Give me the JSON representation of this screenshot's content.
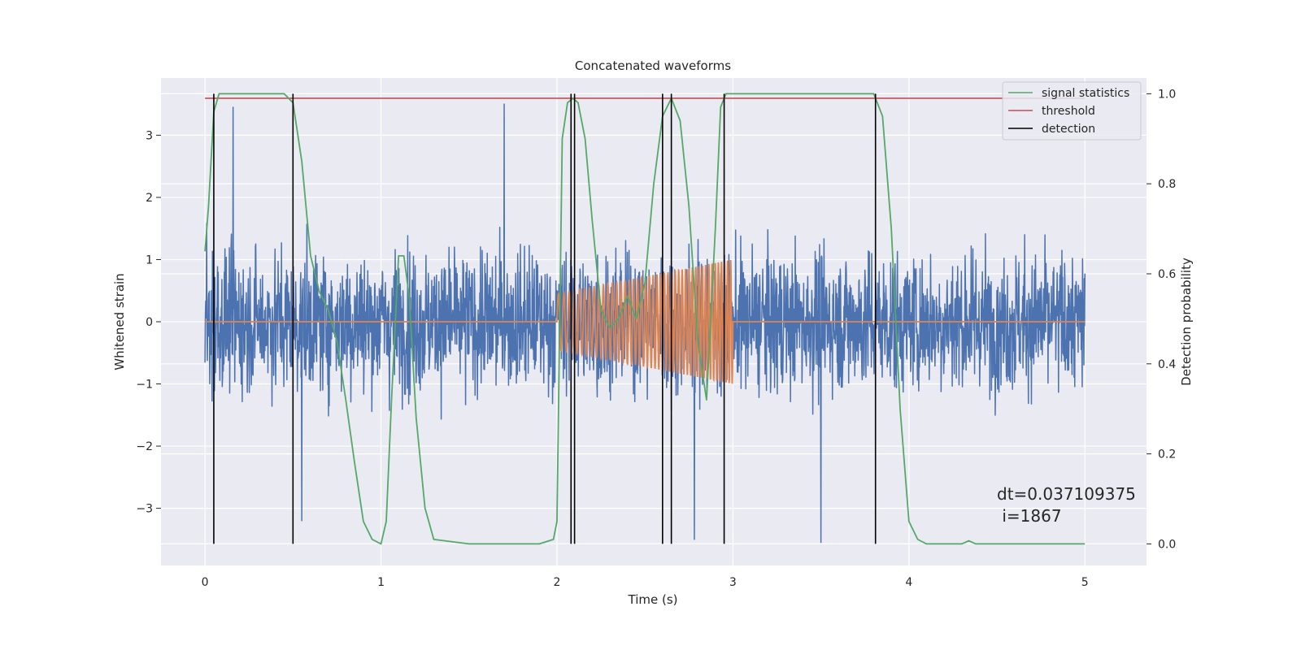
{
  "chart_data": {
    "type": "line",
    "title": "Concatenated waveforms",
    "xlabel": "Time (s)",
    "ylabel": "Whitened strain",
    "y2label": "Detection probability",
    "xlim": [
      -0.25,
      5.35
    ],
    "ylim": [
      -3.92,
      3.92
    ],
    "y2lim": [
      -0.048,
      1.035
    ],
    "x_ticks": [
      0,
      1,
      2,
      3,
      4,
      5
    ],
    "x_tick_labels": [
      "0",
      "1",
      "2",
      "3",
      "4",
      "5"
    ],
    "y_ticks": [
      -3,
      -2,
      -1,
      0,
      1,
      2,
      3
    ],
    "y_tick_labels": [
      "−3",
      "−2",
      "−1",
      "0",
      "1",
      "2",
      "3"
    ],
    "y2_ticks": [
      0.0,
      0.2,
      0.4,
      0.6,
      0.8,
      1.0
    ],
    "y2_tick_labels": [
      "0.0",
      "0.2",
      "0.4",
      "0.6",
      "0.8",
      "1.0"
    ],
    "grid": true,
    "legend_position": "top-right",
    "legend": [
      {
        "label": "signal statistics",
        "color": "#55a868"
      },
      {
        "label": "threshold",
        "color": "#c44e52"
      },
      {
        "label": "detection",
        "color": "#000000"
      }
    ],
    "annotation": {
      "line1": "dt=0.037109375",
      "line2": " i=1867"
    },
    "series": [
      {
        "role": "noisy strain (whitened)",
        "axis": "left",
        "color": "#4c72b0",
        "x_range": [
          0,
          5
        ],
        "envelope": {
          "segments": [
            {
              "x": [
                0.0,
                0.5
              ],
              "amp_peak": 2.6
            },
            {
              "x": [
                0.5,
                2.0
              ],
              "amp_peak": 2.4
            },
            {
              "x": [
                2.0,
                3.0
              ],
              "amp_peak": 2.7
            },
            {
              "x": [
                3.0,
                5.0
              ],
              "amp_peak": 2.6
            }
          ],
          "extremes": [
            {
              "x": 0.16,
              "y": 3.45
            },
            {
              "x": 1.7,
              "y": 3.5
            },
            {
              "x": 3.5,
              "y": -3.55
            },
            {
              "x": 0.55,
              "y": -3.2
            },
            {
              "x": 2.78,
              "y": -3.5
            }
          ]
        }
      },
      {
        "role": "injected waveform",
        "axis": "left",
        "color": "#dd8452",
        "baseline": 0,
        "chirp": {
          "start": 2.0,
          "end": 3.0,
          "amp_start": 0.45,
          "amp_end": 1.0,
          "cycles": 45
        }
      },
      {
        "name": "signal statistics",
        "axis": "right",
        "color": "#55a868",
        "x": [
          0.0,
          0.02,
          0.05,
          0.08,
          0.12,
          0.2,
          0.45,
          0.5,
          0.55,
          0.6,
          0.65,
          0.7,
          0.75,
          0.8,
          0.85,
          0.9,
          0.95,
          1.0,
          1.03,
          1.06,
          1.1,
          1.13,
          1.16,
          1.2,
          1.25,
          1.3,
          1.5,
          1.9,
          1.98,
          2.0,
          2.03,
          2.06,
          2.09,
          2.12,
          2.16,
          2.2,
          2.25,
          2.3,
          2.35,
          2.4,
          2.45,
          2.5,
          2.55,
          2.6,
          2.65,
          2.7,
          2.75,
          2.8,
          2.85,
          2.9,
          2.93,
          2.96,
          3.0,
          3.5,
          3.8,
          3.85,
          3.9,
          3.95,
          4.0,
          4.05,
          4.1,
          4.2,
          4.3,
          4.34,
          4.38,
          4.5,
          5.0
        ],
        "y": [
          0.65,
          0.75,
          0.96,
          1.0,
          1.0,
          1.0,
          1.0,
          0.98,
          0.85,
          0.64,
          0.56,
          0.52,
          0.45,
          0.32,
          0.18,
          0.05,
          0.01,
          0.0,
          0.05,
          0.32,
          0.64,
          0.64,
          0.55,
          0.28,
          0.08,
          0.01,
          0.0,
          0.0,
          0.01,
          0.05,
          0.9,
          0.98,
          0.99,
          0.98,
          0.9,
          0.72,
          0.52,
          0.48,
          0.5,
          0.55,
          0.5,
          0.58,
          0.8,
          0.95,
          0.99,
          0.94,
          0.75,
          0.45,
          0.32,
          0.7,
          0.97,
          1.0,
          1.0,
          1.0,
          1.0,
          0.95,
          0.7,
          0.3,
          0.05,
          0.01,
          0.0,
          0.0,
          0.0,
          0.007,
          0.0,
          0.0,
          0.0
        ]
      },
      {
        "name": "threshold",
        "axis": "right",
        "color": "#c44e52",
        "x": [
          0,
          5
        ],
        "y": [
          0.99,
          0.99
        ]
      },
      {
        "name": "detection",
        "axis": "right",
        "color": "#000000",
        "type": "vlines",
        "x": [
          0.05,
          0.5,
          2.08,
          2.1,
          2.6,
          2.65,
          2.95,
          3.81
        ],
        "ymin": 0.0,
        "ymax": 1.0
      }
    ]
  }
}
